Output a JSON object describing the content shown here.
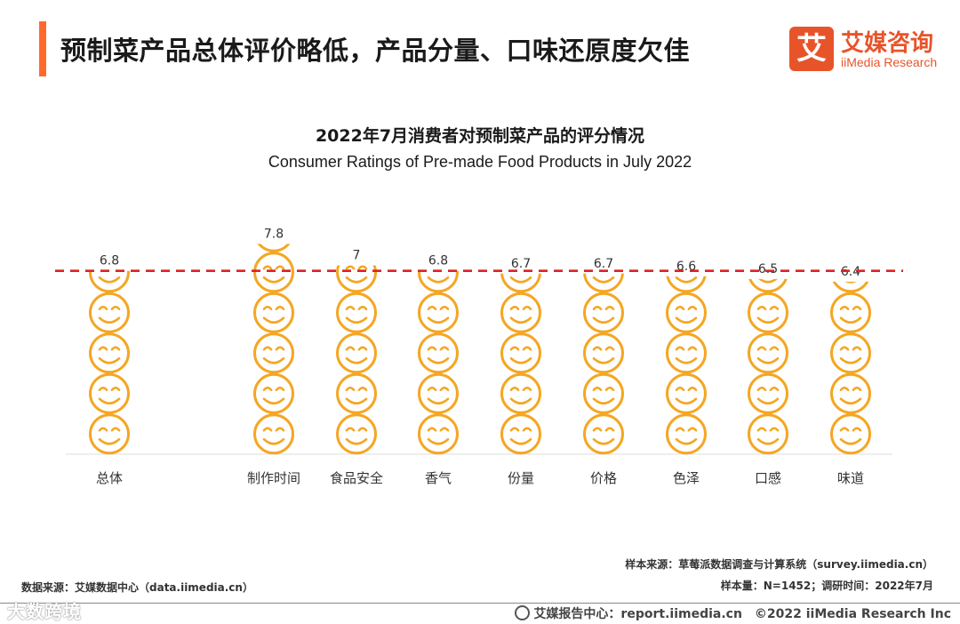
{
  "header": {
    "headline": "预制菜产品总体评价略低，产品分量、口味还原度欠佳",
    "logo_mark": "艾",
    "logo_cn": "艾媒咨询",
    "logo_en": "iiMedia Research"
  },
  "colors": {
    "accent": "#ff6a2c",
    "brand": "#e8542a",
    "face": "#f5a623",
    "reference": "#e02020"
  },
  "chart_data": {
    "type": "bar",
    "title": "2022年7月消费者对预制菜产品的评分情况",
    "subtitle": "Consumer Ratings of Pre-made Food Products in July 2022",
    "categories": [
      "总体",
      "制作时间",
      "食品安全",
      "香气",
      "份量",
      "价格",
      "色泽",
      "口感",
      "味道"
    ],
    "values": [
      6.8,
      7.8,
      7,
      6.8,
      6.7,
      6.7,
      6.6,
      6.5,
      6.4
    ],
    "value_labels": [
      "6.8",
      "7.8",
      "7",
      "6.8",
      "6.7",
      "6.7",
      "6.6",
      "6.5",
      "6.4"
    ],
    "reference_line": {
      "value": 6.8,
      "style": "dashed"
    },
    "ylim": [
      0,
      10
    ],
    "marker": "smiley-icon",
    "unit_per_icon": 1.5,
    "base_value": 4.5
  },
  "footer": {
    "data_source": "数据来源：艾媒数据中心（data.iimedia.cn）",
    "sample_source": "样本来源：草莓派数据调查与计算系统（survey.iimedia.cn）",
    "sample_info": "样本量：N=1452；调研时间：2022年7月",
    "watermark": "大数跨境",
    "report_center": "艾媒报告中心：report.iimedia.cn　©2022  iiMedia Research  Inc"
  }
}
